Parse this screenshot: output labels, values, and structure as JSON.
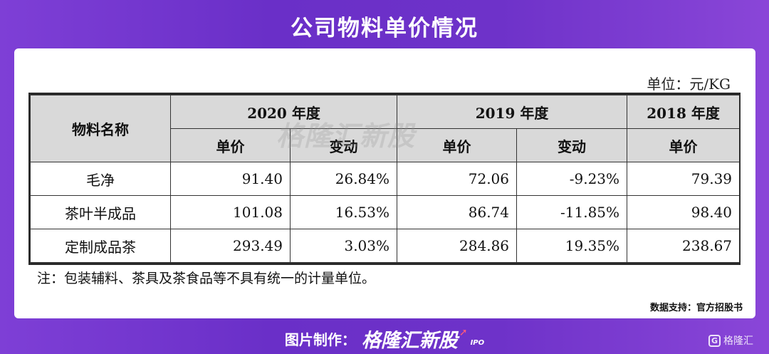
{
  "title": "公司物料单价情况",
  "unit": "单位：元/KG",
  "table": {
    "col_name": "物料名称",
    "years": [
      "2020 年度",
      "2019 年度",
      "2018 年度"
    ],
    "sub": [
      "单价",
      "变动",
      "单价",
      "变动",
      "单价"
    ],
    "rows": [
      {
        "name": "毛净",
        "v": [
          "91.40",
          "26.84%",
          "72.06",
          "-9.23%",
          "79.39"
        ]
      },
      {
        "name": "茶叶半成品",
        "v": [
          "101.08",
          "16.53%",
          "86.74",
          "-11.85%",
          "98.40"
        ]
      },
      {
        "name": "定制成品茶",
        "v": [
          "293.49",
          "3.03%",
          "284.86",
          "19.35%",
          "238.67"
        ]
      }
    ]
  },
  "note": "注：包装辅料、茶具及茶食品等不具有统一的计量单位。",
  "source": "数据支持：官方招股书",
  "watermark": "格隆汇新股",
  "footer": {
    "label": "图片制作：",
    "brand": "格隆汇新股",
    "ipo": "IPO"
  },
  "corner": {
    "icon": "G",
    "text": "格隆汇"
  }
}
